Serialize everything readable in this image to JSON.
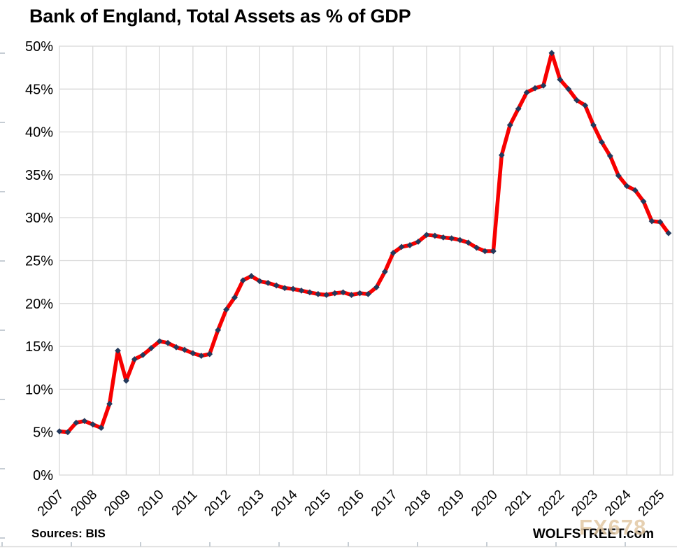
{
  "title": "Bank of England, Total Assets as % of GDP",
  "footer": {
    "source": "Sources: BIS",
    "branding": "WOLFSTREET.com",
    "watermark": "FX678"
  },
  "chart_data": {
    "type": "line",
    "title": "Bank of England, Total Assets as % of GDP",
    "frequency": "quarterly",
    "start_period": "2007Q1",
    "end_period": "2025Q2",
    "x_tick_labels": [
      "2007",
      "2008",
      "2009",
      "2010",
      "2011",
      "2012",
      "2013",
      "2014",
      "2015",
      "2016",
      "2017",
      "2018",
      "2019",
      "2020",
      "2021",
      "2022",
      "2023",
      "2024",
      "2025"
    ],
    "y_tick_labels": [
      "0%",
      "5%",
      "10%",
      "15%",
      "20%",
      "25%",
      "30%",
      "35%",
      "40%",
      "45%",
      "50%"
    ],
    "ylim": [
      0,
      50
    ],
    "y_tick_step": 5,
    "grid": true,
    "legend_position": "none",
    "xlabel": "",
    "ylabel": "",
    "values": [
      5.1,
      5.0,
      6.1,
      6.3,
      5.9,
      5.5,
      8.3,
      14.5,
      11.0,
      13.5,
      14.0,
      14.8,
      15.6,
      15.4,
      14.9,
      14.6,
      14.2,
      13.9,
      14.1,
      16.9,
      19.3,
      20.7,
      22.7,
      23.2,
      22.6,
      22.4,
      22.1,
      21.8,
      21.7,
      21.5,
      21.3,
      21.1,
      21.0,
      21.2,
      21.3,
      21.0,
      21.2,
      21.1,
      21.9,
      23.7,
      25.9,
      26.6,
      26.8,
      27.2,
      28.0,
      27.9,
      27.7,
      27.6,
      27.4,
      27.1,
      26.5,
      26.1,
      26.1,
      37.3,
      40.8,
      42.7,
      44.6,
      45.1,
      45.4,
      49.2,
      46.1,
      45.0,
      43.7,
      43.1,
      40.8,
      38.8,
      37.2,
      34.9,
      33.7,
      33.2,
      31.9,
      29.6,
      29.5,
      28.2
    ],
    "colors": {
      "series_line": "#f70000",
      "marker": "#24395b",
      "gridline": "#d9d9d9",
      "axis_text": "#000000",
      "edge_ticks": "#c6cdd4"
    }
  }
}
